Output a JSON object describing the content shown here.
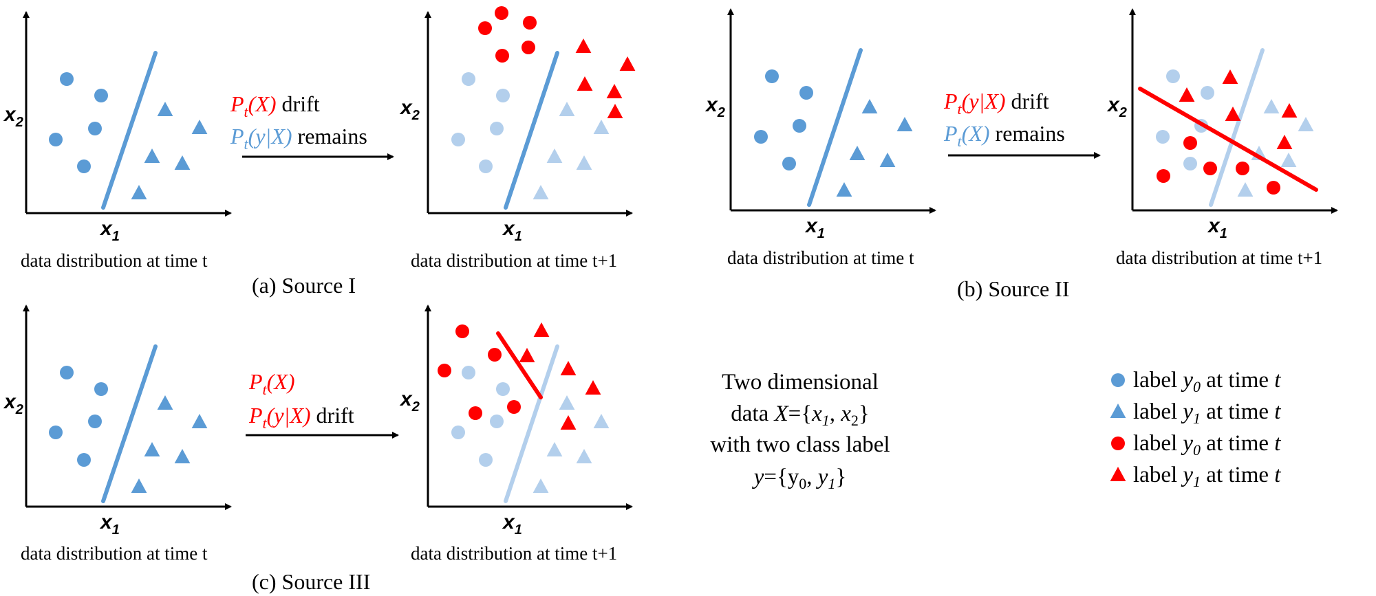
{
  "colors": {
    "blue": "#5b9bd5",
    "light_blue": "#b3cfec",
    "red": "#ff0000",
    "axis": "#000000"
  },
  "axis_labels": {
    "x": "x",
    "x_sub": "1",
    "y": "x",
    "y_sub": "2"
  },
  "panels": {
    "a": {
      "caption": "(a) Source I",
      "left_caption": "data distribution at time t",
      "right_caption": "data distribution at time t+1",
      "arrow_line1": {
        "sym": "P",
        "sub": "t",
        "arg": "(X)",
        "rest": " drift"
      },
      "arrow_line2": {
        "sym": "P",
        "sub": "t",
        "arg": "(y|X)",
        "rest": " remains"
      }
    },
    "b": {
      "caption": "(b) Source II",
      "left_caption": "data distribution at time t",
      "right_caption": "data distribution at time t+1",
      "arrow_line1": {
        "sym": "P",
        "sub": "t",
        "arg": "(y|X)",
        "rest": " drift"
      },
      "arrow_line2": {
        "sym": "P",
        "sub": "t",
        "arg": "(X)",
        "rest": " remains"
      }
    },
    "c": {
      "caption": "(c) Source III",
      "left_caption": "data distribution at time t",
      "right_caption": "data distribution at time t+1",
      "arrow_line1": {
        "sym": "P",
        "sub": "t",
        "arg": "(X)",
        "rest": ""
      },
      "arrow_line2": {
        "sym": "P",
        "sub": "t",
        "arg": "(y|X)",
        "rest": " drift"
      }
    }
  },
  "description": {
    "line1": "Two dimensional",
    "line2_pre": "data ",
    "line2_X": "X",
    "line2_eq": "={",
    "line2_x1": "x",
    "line2_sep": ", ",
    "line2_x2": "x",
    "line2_close": "}",
    "line3": "with two class label",
    "line4_y": "y",
    "line4_eq": "={y",
    "line4_sep": ", ",
    "line4_y1": "y",
    "line4_close": "}",
    "sub0": "0",
    "sub1": "1",
    "sub2": "2"
  },
  "legend": [
    {
      "marker": "circle",
      "color": "blue",
      "text": "label ",
      "var": "y",
      "sub": "0",
      "mid": " at time ",
      "t": "t"
    },
    {
      "marker": "triangle",
      "color": "blue",
      "text": "label ",
      "var": "y",
      "sub": "1",
      "mid": " at time ",
      "t": "t"
    },
    {
      "marker": "circle",
      "color": "red",
      "text": "label ",
      "var": "y",
      "sub": "0",
      "mid": " at time ",
      "t": "t"
    },
    {
      "marker": "triangle",
      "color": "red",
      "text": "label ",
      "var": "y",
      "sub": "1",
      "mid": " at time ",
      "t": "t"
    }
  ]
}
